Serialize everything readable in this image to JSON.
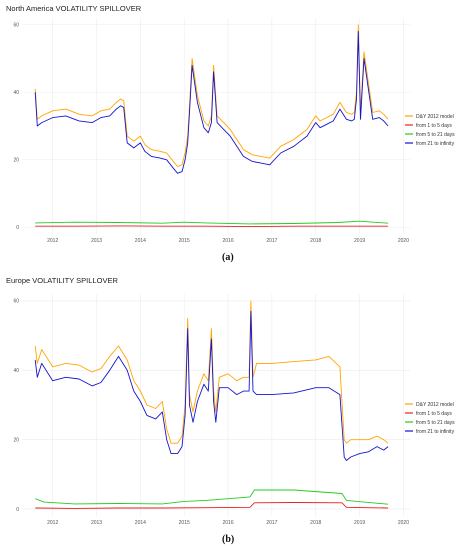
{
  "chart_data": [
    {
      "type": "line",
      "title": "North America VOLATILITY SPILLOVER",
      "caption": "(a)",
      "xlabel": "",
      "ylabel": "",
      "xlim": [
        2011.3,
        2020.15
      ],
      "ylim": [
        -2,
        62
      ],
      "x_ticks": [
        2012,
        2013,
        2014,
        2015,
        2016,
        2017,
        2018,
        2019,
        2020
      ],
      "y_ticks": [
        0,
        20,
        40,
        60
      ],
      "grid": true,
      "legend_position": "right",
      "series": [
        {
          "name": "D&Y 2012 model",
          "color": "#ffa500",
          "x": [
            2011.6,
            2011.65,
            2011.75,
            2012.0,
            2012.3,
            2012.6,
            2012.9,
            2013.1,
            2013.3,
            2013.45,
            2013.55,
            2013.62,
            2013.7,
            2013.85,
            2014.0,
            2014.1,
            2014.25,
            2014.45,
            2014.6,
            2014.75,
            2014.85,
            2014.95,
            2015.02,
            2015.08,
            2015.12,
            2015.18,
            2015.3,
            2015.45,
            2015.55,
            2015.62,
            2015.67,
            2015.75,
            2015.9,
            2016.05,
            2016.2,
            2016.35,
            2016.55,
            2016.75,
            2016.95,
            2017.2,
            2017.5,
            2017.8,
            2018.0,
            2018.1,
            2018.25,
            2018.4,
            2018.55,
            2018.7,
            2018.82,
            2018.88,
            2018.93,
            2018.97,
            2019.02,
            2019.1,
            2019.3,
            2019.45,
            2019.55,
            2019.65
          ],
          "values": [
            41,
            32,
            33,
            34.5,
            35,
            33.5,
            33,
            34.5,
            35,
            37,
            38,
            37.5,
            27,
            25.5,
            27,
            24.5,
            23,
            22.5,
            22,
            19.5,
            18,
            18.5,
            22,
            27,
            36,
            50,
            39,
            31.5,
            30,
            33,
            48,
            33,
            31,
            29,
            26,
            23,
            21.5,
            21,
            20.5,
            24,
            26,
            29,
            33,
            31.5,
            32.5,
            33.5,
            37,
            34,
            33.5,
            34,
            40,
            60,
            34,
            52,
            34,
            34.5,
            33.5,
            32
          ]
        },
        {
          "name": "from 1 to 5 days",
          "color": "#e62020",
          "x": [
            2011.6,
            2012.5,
            2013.5,
            2014.5,
            2015.5,
            2016.5,
            2017.5,
            2018.5,
            2019.65
          ],
          "values": [
            0.3,
            0.3,
            0.4,
            0.3,
            0.3,
            0.2,
            0.3,
            0.3,
            0.3
          ]
        },
        {
          "name": "from 5 to 21 days",
          "color": "#22cc22",
          "x": [
            2011.6,
            2012.5,
            2013.5,
            2014.5,
            2015.0,
            2015.5,
            2016.5,
            2017.5,
            2018.5,
            2019.0,
            2019.65
          ],
          "values": [
            1.3,
            1.5,
            1.4,
            1.2,
            1.5,
            1.3,
            1.0,
            1.1,
            1.4,
            1.8,
            1.2
          ]
        },
        {
          "name": "from 21 to infinity",
          "color": "#1515d0",
          "x": [
            2011.6,
            2011.65,
            2011.75,
            2012.0,
            2012.3,
            2012.6,
            2012.9,
            2013.1,
            2013.3,
            2013.45,
            2013.55,
            2013.62,
            2013.7,
            2013.85,
            2014.0,
            2014.1,
            2014.25,
            2014.45,
            2014.6,
            2014.75,
            2014.85,
            2014.95,
            2015.02,
            2015.08,
            2015.12,
            2015.18,
            2015.3,
            2015.45,
            2015.55,
            2015.62,
            2015.67,
            2015.75,
            2015.9,
            2016.05,
            2016.2,
            2016.35,
            2016.55,
            2016.75,
            2016.95,
            2017.2,
            2017.5,
            2017.8,
            2018.0,
            2018.1,
            2018.25,
            2018.4,
            2018.55,
            2018.7,
            2018.82,
            2018.88,
            2018.93,
            2018.97,
            2019.02,
            2019.1,
            2019.3,
            2019.45,
            2019.55,
            2019.65
          ],
          "values": [
            40,
            30,
            31,
            32.5,
            33,
            31.5,
            31,
            32.5,
            33,
            35,
            36,
            35.5,
            25,
            23.5,
            25,
            22.5,
            21,
            20.5,
            20,
            17.5,
            16,
            16.5,
            20,
            25,
            34,
            48,
            37,
            29.5,
            28,
            31,
            46,
            31,
            29,
            27,
            24,
            21,
            19.5,
            19,
            18.5,
            22,
            24,
            27,
            31,
            29.5,
            30.5,
            31.5,
            35,
            32,
            31.5,
            32,
            38,
            58,
            32,
            50,
            32,
            32.5,
            31.5,
            30
          ]
        }
      ]
    },
    {
      "type": "line",
      "title": "Europe VOLATILITY SPILLOVER",
      "caption": "(b)",
      "xlabel": "",
      "ylabel": "",
      "xlim": [
        2011.3,
        2020.15
      ],
      "ylim": [
        -2,
        62
      ],
      "x_ticks": [
        2012,
        2013,
        2014,
        2015,
        2016,
        2017,
        2018,
        2019,
        2020
      ],
      "y_ticks": [
        0,
        20,
        40,
        60
      ],
      "grid": true,
      "legend_position": "right",
      "series": [
        {
          "name": "D&Y 2012 model",
          "color": "#ffa500",
          "x": [
            2011.6,
            2011.65,
            2011.75,
            2012.0,
            2012.3,
            2012.6,
            2012.9,
            2013.1,
            2013.3,
            2013.5,
            2013.7,
            2013.85,
            2014.0,
            2014.15,
            2014.35,
            2014.5,
            2014.6,
            2014.7,
            2014.85,
            2014.95,
            2015.02,
            2015.08,
            2015.12,
            2015.2,
            2015.3,
            2015.45,
            2015.55,
            2015.62,
            2015.67,
            2015.72,
            2015.8,
            2016.0,
            2016.2,
            2016.35,
            2016.48,
            2016.52,
            2016.57,
            2016.65,
            2017.0,
            2017.5,
            2018.0,
            2018.3,
            2018.55,
            2018.65,
            2018.7,
            2018.8,
            2019.0,
            2019.2,
            2019.4,
            2019.55,
            2019.65
          ],
          "values": [
            47,
            42,
            46,
            41,
            42,
            41.5,
            39.5,
            40.5,
            44,
            47,
            43,
            37,
            34,
            30,
            29,
            31,
            23,
            19,
            19,
            21,
            30,
            55,
            33,
            28,
            34,
            39,
            37,
            52,
            34,
            28,
            38,
            39,
            37,
            38,
            38,
            60,
            38,
            42,
            42,
            42.5,
            43,
            44,
            41,
            20,
            19,
            20,
            20,
            20,
            21,
            20,
            19
          ]
        },
        {
          "name": "from 1 to 5 days",
          "color": "#e62020",
          "x": [
            2011.6,
            2012.5,
            2013.5,
            2014.5,
            2015.5,
            2016.5,
            2016.6,
            2017.5,
            2018.6,
            2018.7,
            2019.65
          ],
          "values": [
            0.3,
            0.2,
            0.3,
            0.3,
            0.4,
            0.5,
            1.8,
            1.9,
            1.8,
            0.5,
            0.3
          ]
        },
        {
          "name": "from 5 to 21 days",
          "color": "#22cc22",
          "x": [
            2011.6,
            2011.8,
            2012.5,
            2013.5,
            2014.5,
            2015.0,
            2015.5,
            2016.5,
            2016.6,
            2017.5,
            2018.6,
            2018.7,
            2019.65
          ],
          "values": [
            3,
            2,
            1.5,
            1.6,
            1.5,
            2.2,
            2.5,
            3.5,
            5.5,
            5.5,
            4.5,
            2.5,
            1.4
          ]
        },
        {
          "name": "from 21 to infinity",
          "color": "#1515d0",
          "x": [
            2011.6,
            2011.65,
            2011.75,
            2012.0,
            2012.3,
            2012.6,
            2012.9,
            2013.1,
            2013.3,
            2013.5,
            2013.7,
            2013.85,
            2014.0,
            2014.15,
            2014.35,
            2014.5,
            2014.6,
            2014.7,
            2014.85,
            2014.95,
            2015.02,
            2015.08,
            2015.12,
            2015.2,
            2015.3,
            2015.45,
            2015.55,
            2015.62,
            2015.67,
            2015.72,
            2015.8,
            2016.0,
            2016.2,
            2016.35,
            2016.48,
            2016.52,
            2016.57,
            2016.65,
            2017.0,
            2017.5,
            2018.0,
            2018.3,
            2018.55,
            2018.65,
            2018.7,
            2018.8,
            2019.0,
            2019.2,
            2019.4,
            2019.55,
            2019.65
          ],
          "values": [
            43,
            38,
            42,
            37,
            38,
            37.5,
            35.5,
            36.5,
            40,
            44,
            40,
            34,
            31,
            27,
            26,
            28,
            20,
            16,
            16,
            18,
            27,
            52,
            30,
            25,
            31,
            36,
            34,
            49,
            31,
            25,
            35,
            35,
            33,
            34,
            34,
            57,
            34,
            33,
            33,
            33.5,
            35,
            35,
            33,
            15,
            14,
            15,
            16,
            16.5,
            18,
            17,
            18
          ]
        }
      ]
    }
  ]
}
